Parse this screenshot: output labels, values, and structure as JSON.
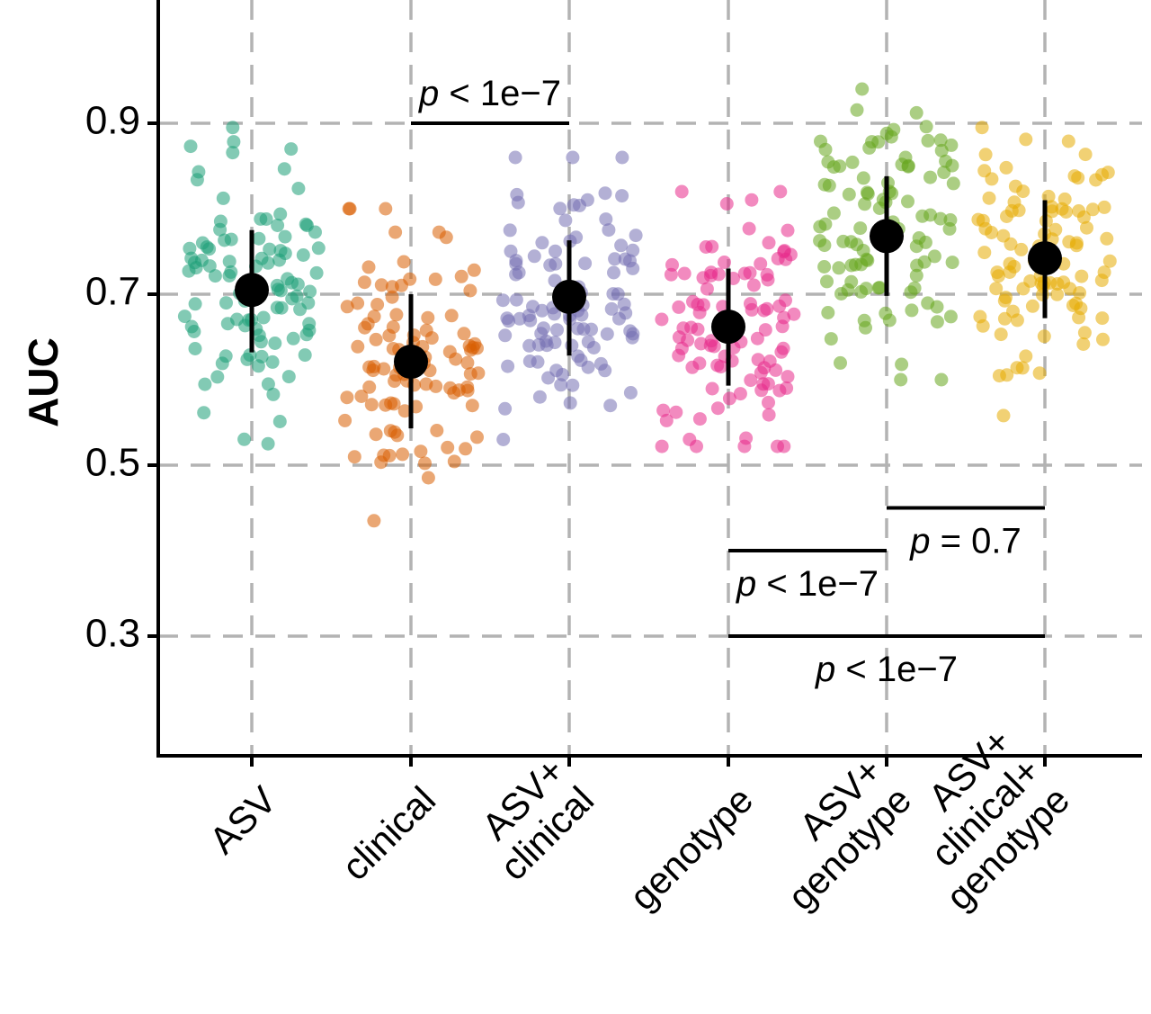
{
  "chart_data": {
    "type": "scatter",
    "title": "",
    "xlabel": "",
    "ylabel": "AUC",
    "ylim": [
      0.16,
      1.03
    ],
    "y_ticks": [
      0.3,
      0.5,
      0.7,
      0.9
    ],
    "y_tick_labels": [
      "0.3",
      "0.5",
      "0.7",
      "0.9"
    ],
    "grid": true,
    "categories": [
      {
        "lines": [
          "ASV"
        ]
      },
      {
        "lines": [
          "clinical"
        ]
      },
      {
        "lines": [
          "ASV+",
          "clinical"
        ]
      },
      {
        "lines": [
          "genotype"
        ]
      },
      {
        "lines": [
          "ASV+",
          "genotype"
        ]
      },
      {
        "lines": [
          "ASV+",
          "clinical+",
          "genotype"
        ]
      }
    ],
    "series": [
      {
        "category": "ASV",
        "color": "#1b9e77",
        "mean": 0.705,
        "lower": 0.632,
        "upper": 0.775,
        "n": 100,
        "min": 0.525,
        "max": 0.895
      },
      {
        "category": "clinical",
        "color": "#d95f02",
        "mean": 0.621,
        "lower": 0.543,
        "upper": 0.7,
        "n": 100,
        "min": 0.435,
        "max": 0.8
      },
      {
        "category": "ASV+clinical",
        "color": "#7570b3",
        "mean": 0.697,
        "lower": 0.628,
        "upper": 0.763,
        "n": 100,
        "min": 0.53,
        "max": 0.86
      },
      {
        "category": "genotype",
        "color": "#e7298a",
        "mean": 0.662,
        "lower": 0.593,
        "upper": 0.73,
        "n": 100,
        "min": 0.522,
        "max": 0.82
      },
      {
        "category": "ASV+genotype",
        "color": "#66a61e",
        "mean": 0.768,
        "lower": 0.698,
        "upper": 0.838,
        "n": 100,
        "min": 0.6,
        "max": 0.94
      },
      {
        "category": "ASV+clinical+genotype",
        "color": "#e6ab02",
        "mean": 0.742,
        "lower": 0.672,
        "upper": 0.81,
        "n": 100,
        "min": 0.558,
        "max": 0.895
      }
    ],
    "comparisons": [
      {
        "from": 1,
        "to": 2,
        "y": 0.9,
        "label": "p < 1e−7",
        "label_position": "above"
      },
      {
        "from": 4,
        "to": 5,
        "y": 0.45,
        "label": "p = 0.7",
        "label_position": "below"
      },
      {
        "from": 3,
        "to": 4,
        "y": 0.4,
        "label": "p < 1e−7",
        "label_position": "below"
      },
      {
        "from": 3,
        "to": 5,
        "y": 0.3,
        "label": "p < 1e−7",
        "label_position": "below"
      }
    ]
  }
}
